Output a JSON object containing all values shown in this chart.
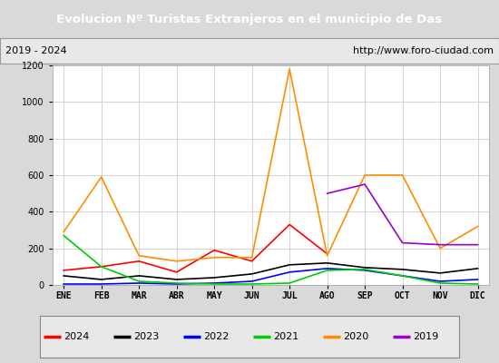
{
  "title": "Evolucion Nº Turistas Extranjeros en el municipio de Das",
  "subtitle_left": "2019 - 2024",
  "subtitle_right": "http://www.foro-ciudad.com",
  "months": [
    "ENE",
    "FEB",
    "MAR",
    "ABR",
    "MAY",
    "JUN",
    "JUL",
    "AGO",
    "SEP",
    "OCT",
    "NOV",
    "DIC"
  ],
  "title_bg": "#4472c4",
  "title_color": "white",
  "plot_bg": "#d9d9d9",
  "inner_bg": "#e8e8e8",
  "chart_bg": "white",
  "ylim": [
    0,
    1200
  ],
  "yticks": [
    0,
    200,
    400,
    600,
    800,
    1000,
    1200
  ],
  "series": {
    "2024": {
      "color": "#ff0000",
      "data": [
        80,
        100,
        130,
        70,
        190,
        130,
        330,
        170,
        null,
        null,
        null,
        null
      ]
    },
    "2023": {
      "color": "#000000",
      "data": [
        50,
        30,
        50,
        30,
        40,
        60,
        110,
        120,
        95,
        85,
        65,
        90
      ]
    },
    "2022": {
      "color": "#0000ff",
      "data": [
        5,
        5,
        10,
        5,
        10,
        20,
        70,
        90,
        80,
        50,
        20,
        30
      ]
    },
    "2021": {
      "color": "#00cc00",
      "data": [
        270,
        100,
        20,
        10,
        5,
        5,
        10,
        80,
        85,
        50,
        10,
        5
      ]
    },
    "2020": {
      "color": "#ff8c00",
      "data": [
        290,
        590,
        160,
        130,
        150,
        150,
        1180,
        160,
        600,
        600,
        200,
        320
      ]
    },
    "2019": {
      "color": "#9900cc",
      "data": [
        null,
        null,
        null,
        null,
        null,
        null,
        null,
        500,
        550,
        230,
        220,
        220
      ]
    }
  },
  "legend_order": [
    "2024",
    "2023",
    "2022",
    "2021",
    "2020",
    "2019"
  ]
}
